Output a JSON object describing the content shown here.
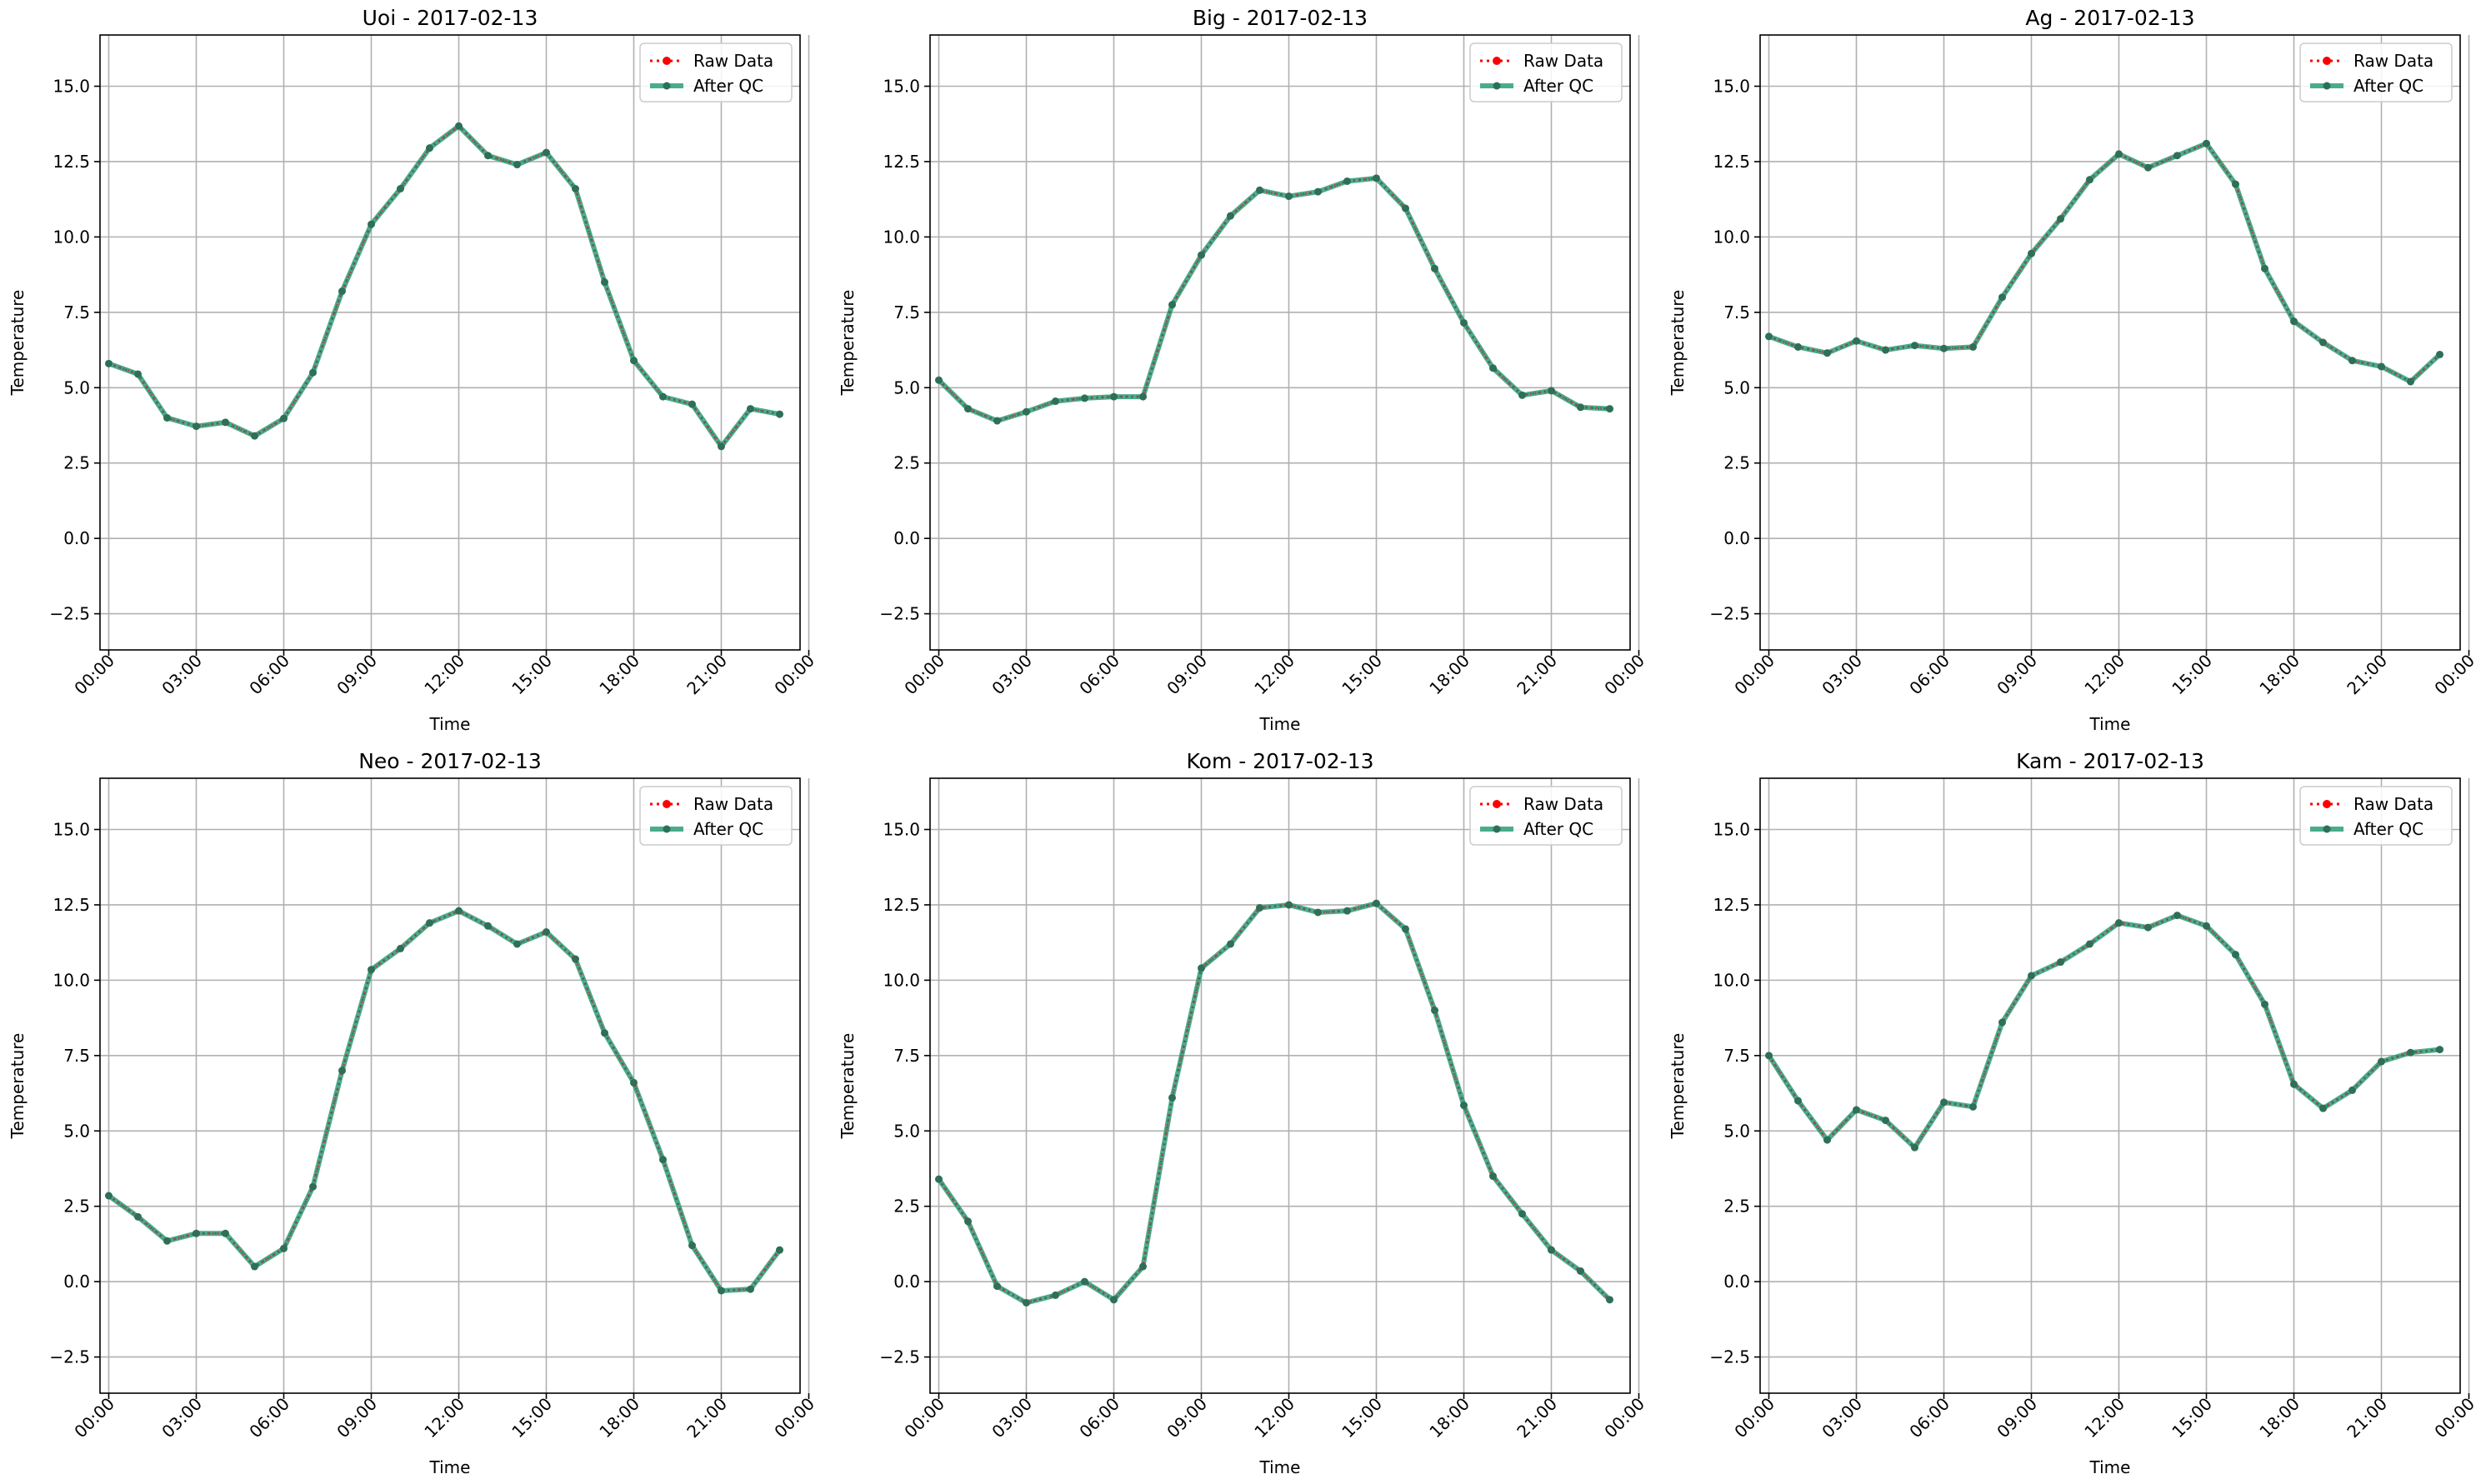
{
  "colors": {
    "raw": "#ff0000",
    "qc": "#2a9d7a",
    "qc_marker": "#2f6f57",
    "grid": "#b0b0b0",
    "axis": "#000000",
    "legend_border": "#cccccc"
  },
  "legend": {
    "raw_label": "Raw Data",
    "qc_label": "After QC",
    "placement": "upper right"
  },
  "chart_data": [
    {
      "type": "line",
      "title": "Uoi - 2017-02-13",
      "xlabel": "Time",
      "ylabel": "Temperature",
      "xticks": [
        "00:00",
        "03:00",
        "06:00",
        "09:00",
        "12:00",
        "15:00",
        "18:00",
        "21:00",
        "00:00"
      ],
      "yticks": [
        "−2.5",
        "0.0",
        "2.5",
        "5.0",
        "7.5",
        "10.0",
        "12.5",
        "15.0"
      ],
      "ylim": [
        -3.7,
        16.7
      ],
      "xlim_hours": [
        -0.3,
        23.7
      ],
      "grid": true,
      "x_hours": [
        0,
        1,
        2,
        3,
        4,
        5,
        6,
        7,
        8,
        9,
        10,
        11,
        12,
        13,
        14,
        15,
        16,
        17,
        18,
        19,
        20,
        21,
        22,
        23
      ],
      "series": [
        {
          "name": "Raw Data",
          "values": [
            5.8,
            5.45,
            4.0,
            3.72,
            3.85,
            3.4,
            3.98,
            5.5,
            8.2,
            10.42,
            11.6,
            12.95,
            13.68,
            12.7,
            12.4,
            12.8,
            11.6,
            8.5,
            5.9,
            4.7,
            4.45,
            3.05,
            4.3,
            4.12
          ]
        },
        {
          "name": "After QC",
          "values": [
            5.8,
            5.45,
            4.0,
            3.72,
            3.85,
            3.4,
            3.98,
            5.5,
            8.2,
            10.42,
            11.6,
            12.95,
            13.68,
            12.7,
            12.4,
            12.8,
            11.6,
            8.5,
            5.9,
            4.7,
            4.45,
            3.05,
            4.3,
            4.12
          ]
        }
      ]
    },
    {
      "type": "line",
      "title": "Big - 2017-02-13",
      "xlabel": "Time",
      "ylabel": "Temperature",
      "xticks": [
        "00:00",
        "03:00",
        "06:00",
        "09:00",
        "12:00",
        "15:00",
        "18:00",
        "21:00",
        "00:00"
      ],
      "yticks": [
        "−2.5",
        "0.0",
        "2.5",
        "5.0",
        "7.5",
        "10.0",
        "12.5",
        "15.0"
      ],
      "ylim": [
        -3.7,
        16.7
      ],
      "xlim_hours": [
        -0.3,
        23.7
      ],
      "grid": true,
      "x_hours": [
        0,
        1,
        2,
        3,
        4,
        5,
        6,
        7,
        8,
        9,
        10,
        11,
        12,
        13,
        14,
        15,
        16,
        17,
        18,
        19,
        20,
        21,
        22,
        23
      ],
      "series": [
        {
          "name": "Raw Data",
          "values": [
            5.25,
            4.3,
            3.9,
            4.2,
            4.55,
            4.65,
            4.7,
            4.7,
            7.75,
            9.4,
            10.7,
            11.55,
            11.35,
            11.5,
            11.85,
            11.95,
            10.95,
            8.95,
            7.15,
            5.65,
            4.75,
            4.9,
            4.35,
            4.3
          ]
        },
        {
          "name": "After QC",
          "values": [
            5.25,
            4.3,
            3.9,
            4.2,
            4.55,
            4.65,
            4.7,
            4.7,
            7.75,
            9.4,
            10.7,
            11.55,
            11.35,
            11.5,
            11.85,
            11.95,
            10.95,
            8.95,
            7.15,
            5.65,
            4.75,
            4.9,
            4.35,
            4.3
          ]
        }
      ]
    },
    {
      "type": "line",
      "title": "Ag - 2017-02-13",
      "xlabel": "Time",
      "ylabel": "Temperature",
      "xticks": [
        "00:00",
        "03:00",
        "06:00",
        "09:00",
        "12:00",
        "15:00",
        "18:00",
        "21:00",
        "00:00"
      ],
      "yticks": [
        "−2.5",
        "0.0",
        "2.5",
        "5.0",
        "7.5",
        "10.0",
        "12.5",
        "15.0"
      ],
      "ylim": [
        -3.7,
        16.7
      ],
      "xlim_hours": [
        -0.3,
        23.7
      ],
      "grid": true,
      "x_hours": [
        0,
        1,
        2,
        3,
        4,
        5,
        6,
        7,
        8,
        9,
        10,
        11,
        12,
        13,
        14,
        15,
        16,
        17,
        18,
        19,
        20,
        21,
        22,
        23
      ],
      "series": [
        {
          "name": "Raw Data",
          "values": [
            6.7,
            6.35,
            6.15,
            6.55,
            6.25,
            6.4,
            6.3,
            6.35,
            8.0,
            9.45,
            10.6,
            11.9,
            12.75,
            12.3,
            12.7,
            13.1,
            11.75,
            8.95,
            7.2,
            6.5,
            5.9,
            5.7,
            5.2,
            6.1
          ]
        },
        {
          "name": "After QC",
          "values": [
            6.7,
            6.35,
            6.15,
            6.55,
            6.25,
            6.4,
            6.3,
            6.35,
            8.0,
            9.45,
            10.6,
            11.9,
            12.75,
            12.3,
            12.7,
            13.1,
            11.75,
            8.95,
            7.2,
            6.5,
            5.9,
            5.7,
            5.2,
            6.1
          ]
        }
      ]
    },
    {
      "type": "line",
      "title": "Neo - 2017-02-13",
      "xlabel": "Time",
      "ylabel": "Temperature",
      "xticks": [
        "00:00",
        "03:00",
        "06:00",
        "09:00",
        "12:00",
        "15:00",
        "18:00",
        "21:00",
        "00:00"
      ],
      "yticks": [
        "−2.5",
        "0.0",
        "2.5",
        "5.0",
        "7.5",
        "10.0",
        "12.5",
        "15.0"
      ],
      "ylim": [
        -3.7,
        16.7
      ],
      "xlim_hours": [
        -0.3,
        23.7
      ],
      "grid": true,
      "x_hours": [
        0,
        1,
        2,
        3,
        4,
        5,
        6,
        7,
        8,
        9,
        10,
        11,
        12,
        13,
        14,
        15,
        16,
        17,
        18,
        19,
        20,
        21,
        22,
        23
      ],
      "series": [
        {
          "name": "Raw Data",
          "values": [
            2.85,
            2.15,
            1.35,
            1.6,
            1.6,
            0.5,
            1.1,
            3.15,
            7.0,
            10.35,
            11.05,
            11.9,
            12.3,
            11.8,
            11.2,
            11.6,
            10.7,
            8.25,
            6.6,
            4.05,
            1.2,
            -0.3,
            -0.25,
            1.05
          ]
        },
        {
          "name": "After QC",
          "values": [
            2.85,
            2.15,
            1.35,
            1.6,
            1.6,
            0.5,
            1.1,
            3.15,
            7.0,
            10.35,
            11.05,
            11.9,
            12.3,
            11.8,
            11.2,
            11.6,
            10.7,
            8.25,
            6.6,
            4.05,
            1.2,
            -0.3,
            -0.25,
            1.05
          ]
        }
      ]
    },
    {
      "type": "line",
      "title": "Kom - 2017-02-13",
      "xlabel": "Time",
      "ylabel": "Temperature",
      "xticks": [
        "00:00",
        "03:00",
        "06:00",
        "09:00",
        "12:00",
        "15:00",
        "18:00",
        "21:00",
        "00:00"
      ],
      "yticks": [
        "−2.5",
        "0.0",
        "2.5",
        "5.0",
        "7.5",
        "10.0",
        "12.5",
        "15.0"
      ],
      "ylim": [
        -3.7,
        16.7
      ],
      "xlim_hours": [
        -0.3,
        23.7
      ],
      "grid": true,
      "x_hours": [
        0,
        1,
        2,
        3,
        4,
        5,
        6,
        7,
        8,
        9,
        10,
        11,
        12,
        13,
        14,
        15,
        16,
        17,
        18,
        19,
        20,
        21,
        22,
        23
      ],
      "series": [
        {
          "name": "Raw Data",
          "values": [
            3.4,
            2.0,
            -0.15,
            -0.7,
            -0.45,
            0.0,
            -0.6,
            0.5,
            6.1,
            10.4,
            11.2,
            12.4,
            12.5,
            12.25,
            12.3,
            12.55,
            11.7,
            9.0,
            5.85,
            3.5,
            2.25,
            1.05,
            0.35,
            -0.6
          ]
        },
        {
          "name": "After QC",
          "values": [
            3.4,
            2.0,
            -0.15,
            -0.7,
            -0.45,
            0.0,
            -0.6,
            0.5,
            6.1,
            10.4,
            11.2,
            12.4,
            12.5,
            12.25,
            12.3,
            12.55,
            11.7,
            9.0,
            5.85,
            3.5,
            2.25,
            1.05,
            0.35,
            -0.6
          ]
        }
      ]
    },
    {
      "type": "line",
      "title": "Kam - 2017-02-13",
      "xlabel": "Time",
      "ylabel": "Temperature",
      "xticks": [
        "00:00",
        "03:00",
        "06:00",
        "09:00",
        "12:00",
        "15:00",
        "18:00",
        "21:00",
        "00:00"
      ],
      "yticks": [
        "−2.5",
        "0.0",
        "2.5",
        "5.0",
        "7.5",
        "10.0",
        "12.5",
        "15.0"
      ],
      "ylim": [
        -3.7,
        16.7
      ],
      "xlim_hours": [
        -0.3,
        23.7
      ],
      "grid": true,
      "x_hours": [
        0,
        1,
        2,
        3,
        4,
        5,
        6,
        7,
        8,
        9,
        10,
        11,
        12,
        13,
        14,
        15,
        16,
        17,
        18,
        19,
        20,
        21,
        22,
        23
      ],
      "series": [
        {
          "name": "Raw Data",
          "values": [
            7.5,
            6.0,
            4.7,
            5.7,
            5.35,
            4.45,
            5.95,
            5.8,
            8.6,
            10.15,
            10.6,
            11.2,
            11.9,
            11.75,
            12.15,
            11.8,
            10.85,
            9.2,
            6.55,
            5.75,
            6.35,
            7.3,
            7.6,
            7.7
          ]
        },
        {
          "name": "After QC",
          "values": [
            7.5,
            6.0,
            4.7,
            5.7,
            5.35,
            4.45,
            5.95,
            5.8,
            8.6,
            10.15,
            10.6,
            11.2,
            11.9,
            11.75,
            12.15,
            11.8,
            10.85,
            9.2,
            6.55,
            5.75,
            6.35,
            7.3,
            7.6,
            7.7
          ]
        }
      ]
    }
  ]
}
